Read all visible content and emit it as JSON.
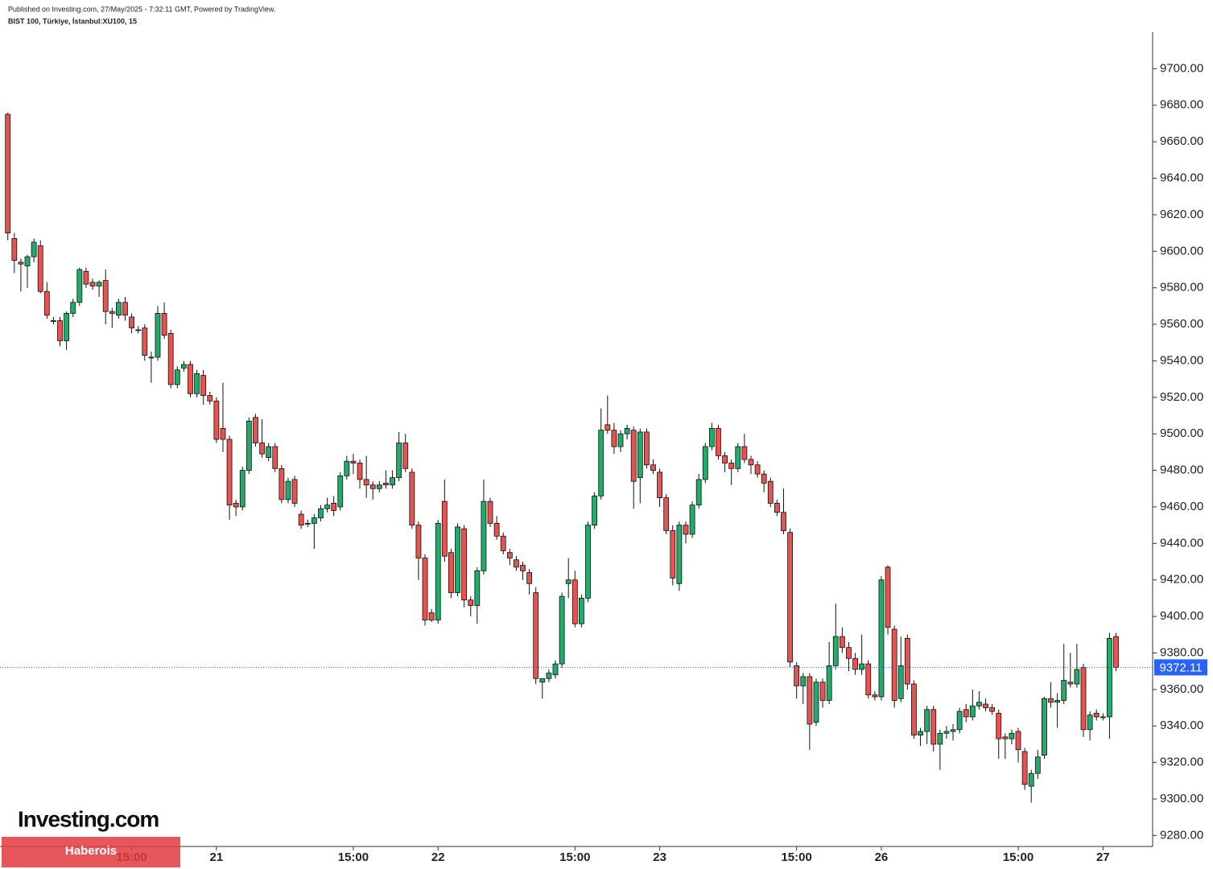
{
  "header": {
    "published": "Published on Investing.com, 27/May/2025 - 7:32:11 GMT, Powered by TradingView.",
    "symbol": "BIST 100, Türkiye, İstanbul:XU100, 15"
  },
  "logo": "Investing.com",
  "watermark": "Haberois",
  "chart_data": {
    "type": "candlestick",
    "up_color": "#22ab6b",
    "down_color": "#e8534f",
    "price_line_color": "#2962ff",
    "xlim": [
      -1.2,
      175
    ],
    "xticks": [
      {
        "value": 19,
        "label": "15:00"
      },
      {
        "value": 32,
        "label": "21"
      },
      {
        "value": 53,
        "label": "15:00"
      },
      {
        "value": 66,
        "label": "22"
      },
      {
        "value": 87,
        "label": "15:00"
      },
      {
        "value": 100,
        "label": "23"
      },
      {
        "value": 121,
        "label": "15:00"
      },
      {
        "value": 134,
        "label": "26"
      },
      {
        "value": 155,
        "label": "15:00"
      },
      {
        "value": 168,
        "label": "27"
      }
    ],
    "ylim": [
      9274,
      9720
    ],
    "yticks": [
      {
        "value": 9280,
        "label": "9280.00"
      },
      {
        "value": 9300,
        "label": "9300.00"
      },
      {
        "value": 9320,
        "label": "9320.00"
      },
      {
        "value": 9340,
        "label": "9340.00"
      },
      {
        "value": 9360,
        "label": "9360.00"
      },
      {
        "value": 9380,
        "label": "9380.00"
      },
      {
        "value": 9400,
        "label": "9400.00"
      },
      {
        "value": 9420,
        "label": "9420.00"
      },
      {
        "value": 9440,
        "label": "9440.00"
      },
      {
        "value": 9460,
        "label": "9460.00"
      },
      {
        "value": 9480,
        "label": "9480.00"
      },
      {
        "value": 9500,
        "label": "9500.00"
      },
      {
        "value": 9520,
        "label": "9520.00"
      },
      {
        "value": 9540,
        "label": "9540.00"
      },
      {
        "value": 9560,
        "label": "9560.00"
      },
      {
        "value": 9580,
        "label": "9580.00"
      },
      {
        "value": 9600,
        "label": "9600.00"
      },
      {
        "value": 9620,
        "label": "9620.00"
      },
      {
        "value": 9640,
        "label": "9640.00"
      },
      {
        "value": 9660,
        "label": "9660.00"
      },
      {
        "value": 9680,
        "label": "9680.00"
      },
      {
        "value": 9700,
        "label": "9700.00"
      }
    ],
    "open": [
      9675,
      9607,
      9594,
      9592,
      9597,
      9603,
      9578,
      9562,
      9562,
      9551,
      9566,
      9572,
      9589,
      9583,
      9581,
      9584,
      9567,
      9565,
      9572,
      9564,
      9557,
      9558,
      9542,
      9542,
      9566,
      9555,
      9527,
      9536,
      9538,
      9522,
      9532,
      9521,
      9518,
      9503,
      9497,
      9462,
      9460,
      9480,
      9509,
      9495,
      9487,
      9493,
      9481,
      9464,
      9475,
      9456,
      9451,
      9451,
      9454,
      9459,
      9462,
      9460,
      9477,
      9485,
      9484,
      9475,
      9472,
      9470,
      9473,
      9472,
      9476,
      9495,
      9479,
      9450,
      9432,
      9402,
      9398,
      9463,
      9435,
      9413,
      9448,
      9409,
      9406,
      9425,
      9463,
      9451,
      9444,
      9435,
      9431,
      9428,
      9424,
      9413,
      9364,
      9366,
      9368,
      9374,
      9418,
      9420,
      9396,
      9410,
      9450,
      9466,
      9505,
      9502,
      9493,
      9500,
      9502,
      9476,
      9501,
      9483,
      9479,
      9465,
      9447,
      9418,
      9450,
      9445,
      9461,
      9475,
      9493,
      9503,
      9488,
      9484,
      9481,
      9493,
      9486,
      9483,
      9478,
      9474,
      9462,
      9457,
      9446,
      9373,
      9362,
      9367,
      9342,
      9364,
      9354,
      9373,
      9389,
      9383,
      9377,
      9371,
      9374,
      9357,
      9356,
      9427,
      9393,
      9355,
      9388,
      9363,
      9335,
      9337,
      9349,
      9330,
      9336,
      9337,
      9338,
      9349,
      9345,
      9351,
      9352,
      9350,
      9347,
      9334,
      9333,
      9337,
      9326,
      9307,
      9314,
      9324,
      9355,
      9353,
      9354,
      9364,
      9363,
      9372,
      9338,
      9347,
      9345,
      9345,
      9389
    ],
    "high": [
      9676,
      9610,
      9596,
      9598,
      9607,
      9606,
      9583,
      9564,
      9564,
      9567,
      9574,
      9591,
      9591,
      9585,
      9584,
      9590,
      9569,
      9574,
      9575,
      9566,
      9559,
      9560,
      9545,
      9570,
      9572,
      9557,
      9537,
      9540,
      9540,
      9535,
      9535,
      9523,
      9520,
      9528,
      9499,
      9464,
      9482,
      9509,
      9511,
      9508,
      9495,
      9495,
      9483,
      9476,
      9477,
      9458,
      9453,
      9456,
      9461,
      9465,
      9466,
      9479,
      9488,
      9489,
      9486,
      9488,
      9474,
      9474,
      9480,
      9480,
      9501,
      9500,
      9481,
      9452,
      9434,
      9404,
      9453,
      9475,
      9437,
      9451,
      9450,
      9411,
      9427,
      9475,
      9465,
      9455,
      9446,
      9437,
      9433,
      9430,
      9426,
      9416,
      9366,
      9371,
      9376,
      9413,
      9432,
      9425,
      9412,
      9452,
      9468,
      9514,
      9521,
      9506,
      9502,
      9505,
      9504,
      9503,
      9503,
      9486,
      9481,
      9467,
      9450,
      9452,
      9452,
      9463,
      9478,
      9495,
      9506,
      9505,
      9490,
      9486,
      9495,
      9500,
      9488,
      9485,
      9480,
      9476,
      9464,
      9470,
      9448,
      9375,
      9369,
      9369,
      9366,
      9366,
      9386,
      9407,
      9394,
      9386,
      9380,
      9390,
      9376,
      9359,
      9422,
      9428,
      9395,
      9389,
      9390,
      9365,
      9339,
      9351,
      9351,
      9338,
      9340,
      9341,
      9350,
      9352,
      9360,
      9359,
      9355,
      9352,
      9349,
      9336,
      9338,
      9339,
      9328,
      9316,
      9327,
      9356,
      9364,
      9358,
      9385,
      9380,
      9385,
      9374,
      9348,
      9349,
      9347,
      9391,
      9391
    ],
    "low": [
      9606,
      9588,
      9578,
      9580,
      9594,
      9577,
      9563,
      9560,
      9548,
      9546,
      9564,
      9570,
      9580,
      9579,
      9575,
      9560,
      9558,
      9563,
      9562,
      9555,
      9555,
      9540,
      9528,
      9540,
      9552,
      9525,
      9525,
      9534,
      9520,
      9520,
      9516,
      9516,
      9495,
      9490,
      9453,
      9455,
      9458,
      9478,
      9493,
      9487,
      9485,
      9479,
      9462,
      9462,
      9460,
      9448,
      9449,
      9437,
      9452,
      9457,
      9455,
      9458,
      9475,
      9478,
      9470,
      9465,
      9464,
      9468,
      9470,
      9470,
      9474,
      9479,
      9448,
      9420,
      9395,
      9397,
      9396,
      9430,
      9410,
      9411,
      9405,
      9400,
      9396,
      9423,
      9449,
      9442,
      9434,
      9428,
      9425,
      9420,
      9412,
      9363,
      9355,
      9364,
      9366,
      9372,
      9410,
      9394,
      9394,
      9408,
      9448,
      9464,
      9500,
      9489,
      9490,
      9497,
      9459,
      9462,
      9481,
      9478,
      9460,
      9445,
      9417,
      9414,
      9440,
      9443,
      9459,
      9473,
      9491,
      9486,
      9479,
      9472,
      9479,
      9484,
      9478,
      9476,
      9468,
      9460,
      9455,
      9445,
      9372,
      9355,
      9352,
      9327,
      9340,
      9350,
      9352,
      9371,
      9380,
      9370,
      9368,
      9368,
      9355,
      9354,
      9354,
      9390,
      9350,
      9353,
      9360,
      9333,
      9329,
      9330,
      9326,
      9316,
      9333,
      9332,
      9336,
      9342,
      9343,
      9349,
      9348,
      9346,
      9322,
      9322,
      9330,
      9320,
      9305,
      9298,
      9311,
      9322,
      9350,
      9339,
      9352,
      9361,
      9361,
      9334,
      9332,
      9343,
      9343,
      9333,
      9370
    ],
    "close": [
      9610,
      9595,
      9593,
      9597,
      9605,
      9578,
      9565,
      9562,
      9551,
      9566,
      9572,
      9590,
      9582,
      9581,
      9583,
      9567,
      9566,
      9572,
      9565,
      9558,
      9557,
      9543,
      9542,
      9566,
      9554,
      9527,
      9535,
      9538,
      9522,
      9533,
      9521,
      9518,
      9497,
      9497,
      9461,
      9460,
      9480,
      9507,
      9495,
      9489,
      9493,
      9481,
      9464,
      9474,
      9462,
      9450,
      9451,
      9454,
      9459,
      9461,
      9458,
      9477,
      9485,
      9484,
      9475,
      9472,
      9470,
      9472,
      9472,
      9476,
      9495,
      9481,
      9450,
      9432,
      9398,
      9398,
      9451,
      9433,
      9413,
      9449,
      9409,
      9406,
      9425,
      9463,
      9451,
      9444,
      9436,
      9432,
      9427,
      9425,
      9418,
      9366,
      9366,
      9369,
      9374,
      9411,
      9420,
      9396,
      9410,
      9450,
      9466,
      9502,
      9502,
      9493,
      9500,
      9503,
      9474,
      9501,
      9483,
      9480,
      9465,
      9447,
      9421,
      9450,
      9445,
      9461,
      9475,
      9493,
      9503,
      9488,
      9484,
      9481,
      9493,
      9486,
      9483,
      9478,
      9473,
      9462,
      9457,
      9447,
      9375,
      9362,
      9367,
      9341,
      9364,
      9354,
      9373,
      9389,
      9383,
      9377,
      9371,
      9374,
      9357,
      9356,
      9420,
      9394,
      9354,
      9373,
      9363,
      9335,
      9337,
      9349,
      9330,
      9336,
      9337,
      9338,
      9348,
      9345,
      9351,
      9353,
      9350,
      9348,
      9333,
      9333,
      9336,
      9327,
      9308,
      9314,
      9323,
      9355,
      9353,
      9354,
      9365,
      9363,
      9371,
      9338,
      9346,
      9345,
      9345,
      9388,
      9372.11
    ]
  }
}
